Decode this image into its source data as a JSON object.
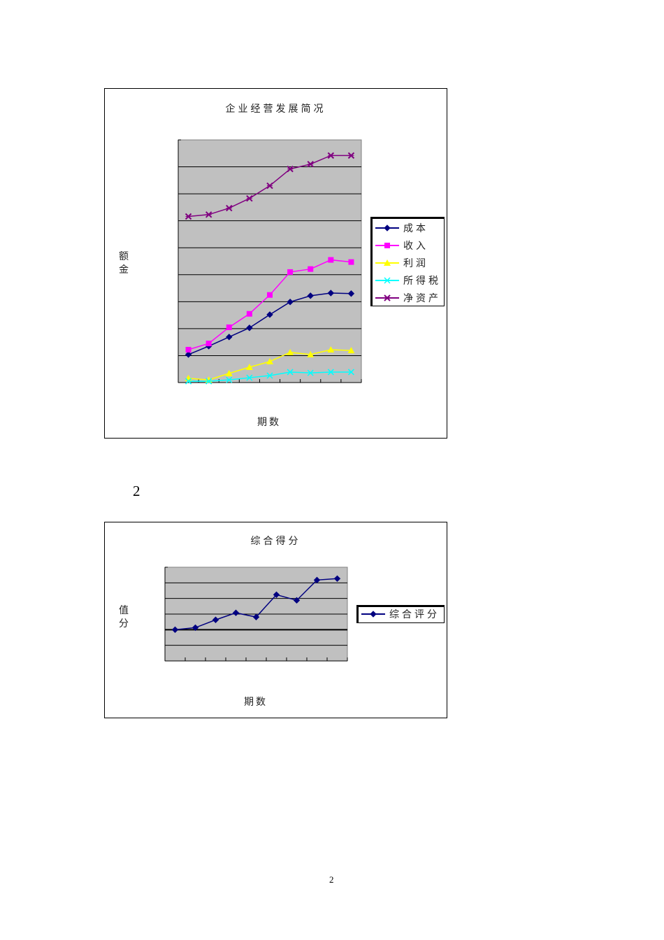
{
  "page": {
    "section_number": "2",
    "footer_page_number": "2"
  },
  "chart1": {
    "title": "企业经营发展简况",
    "ylabel_line1": "额",
    "ylabel_line2": "金",
    "xlabel": "期数",
    "legend": [
      {
        "name": "成本",
        "color": "#000080",
        "marker": "diamond"
      },
      {
        "name": "收入",
        "color": "#ff00ff",
        "marker": "square"
      },
      {
        "name": "利润",
        "color": "#ffff00",
        "marker": "triangle"
      },
      {
        "name": "所得税",
        "color": "#00ffff",
        "marker": "x"
      },
      {
        "name": "净资产",
        "color": "#800080",
        "marker": "star"
      }
    ]
  },
  "chart2": {
    "title": "综合得分",
    "ylabel_line1": "值",
    "ylabel_line2": "分",
    "xlabel": "期数",
    "legend": [
      {
        "name": "综合评分",
        "color": "#000080",
        "marker": "diamond"
      }
    ]
  },
  "chart_data": [
    {
      "type": "line",
      "title": "企业经营发展简况",
      "xlabel": "期数",
      "ylabel": "金额",
      "x": [
        1,
        2,
        3,
        4,
        5,
        6,
        7,
        8,
        9
      ],
      "ylim": [
        0,
        9
      ],
      "grid": true,
      "tick_labels_visible": false,
      "legend_position": "right",
      "plot_background": "#c0c0c0",
      "series": [
        {
          "name": "成本",
          "color": "#000080",
          "marker": "diamond",
          "values": [
            1.04,
            1.35,
            1.69,
            2.03,
            2.52,
            2.99,
            3.22,
            3.32,
            3.3
          ]
        },
        {
          "name": "收入",
          "color": "#ff00ff",
          "marker": "square",
          "values": [
            1.22,
            1.45,
            2.05,
            2.55,
            3.25,
            4.1,
            4.21,
            4.55,
            4.47
          ]
        },
        {
          "name": "利润",
          "color": "#ffff00",
          "marker": "triangle",
          "values": [
            0.16,
            0.1,
            0.34,
            0.57,
            0.78,
            1.12,
            1.04,
            1.22,
            1.19
          ]
        },
        {
          "name": "所得税",
          "color": "#00ffff",
          "marker": "x",
          "values": [
            0.05,
            0.05,
            0.1,
            0.18,
            0.26,
            0.39,
            0.36,
            0.39,
            0.39
          ]
        },
        {
          "name": "净资产",
          "color": "#800080",
          "marker": "star",
          "values": [
            6.16,
            6.23,
            6.47,
            6.83,
            7.3,
            7.92,
            8.1,
            8.42,
            8.42
          ]
        }
      ]
    },
    {
      "type": "line",
      "title": "综合得分",
      "xlabel": "期数",
      "ylabel": "分值",
      "x": [
        1,
        2,
        3,
        4,
        5,
        6,
        7,
        8,
        9
      ],
      "ylim": [
        -2,
        4
      ],
      "grid": true,
      "tick_labels_visible": false,
      "legend_position": "right",
      "plot_background": "#c0c0c0",
      "series": [
        {
          "name": "综合评分",
          "color": "#000080",
          "marker": "diamond",
          "values": [
            0.0,
            0.13,
            0.63,
            1.08,
            0.81,
            2.24,
            1.88,
            3.18,
            3.27
          ]
        }
      ]
    }
  ]
}
